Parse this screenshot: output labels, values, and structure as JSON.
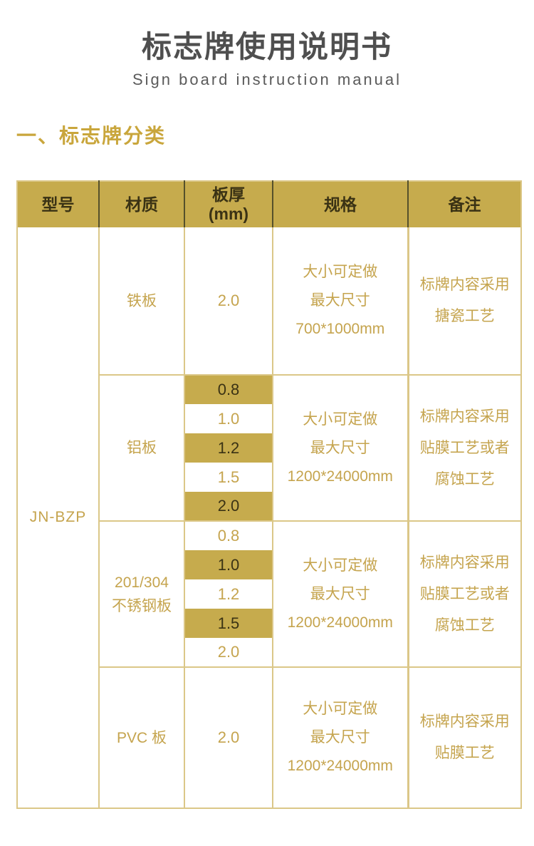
{
  "page": {
    "title": "标志牌使用说明书",
    "subtitle": "Sign board instruction manual",
    "section_heading": "一、标志牌分类"
  },
  "colors": {
    "gold_bg": "#C6AB4D",
    "gold_text": "#C5A44E",
    "dark_on_gold": "#3A3214",
    "table_border": "#DBC788",
    "header_divider": "#55502B",
    "title_color": "#4F4F4F",
    "subtitle_color": "#5A5A5A",
    "section_color": "#C9A63C"
  },
  "table": {
    "model_label": "JN-BZP",
    "headers": {
      "model": "型号",
      "material": "材质",
      "thickness_line1": "板厚",
      "thickness_line2": "(mm)",
      "spec": "规格",
      "remark": "备注"
    },
    "sections": [
      {
        "material_lines": [
          "铁板"
        ],
        "thicknesses": [
          {
            "value": "2.0",
            "highlighted": false
          }
        ],
        "spec_lines": [
          "大小可定做",
          "最大尺寸",
          "700*1000mm"
        ],
        "remark_lines": [
          "标牌内容采用",
          "搪瓷工艺"
        ]
      },
      {
        "material_lines": [
          "铝板"
        ],
        "thicknesses": [
          {
            "value": "0.8",
            "highlighted": true
          },
          {
            "value": "1.0",
            "highlighted": false
          },
          {
            "value": "1.2",
            "highlighted": true
          },
          {
            "value": "1.5",
            "highlighted": false
          },
          {
            "value": "2.0",
            "highlighted": true
          }
        ],
        "spec_lines": [
          "大小可定做",
          "最大尺寸",
          "1200*24000mm"
        ],
        "remark_lines": [
          "标牌内容采用",
          "贴膜工艺或者",
          "腐蚀工艺"
        ]
      },
      {
        "material_lines": [
          "201/304",
          "不锈钢板"
        ],
        "thicknesses": [
          {
            "value": "0.8",
            "highlighted": false
          },
          {
            "value": "1.0",
            "highlighted": true
          },
          {
            "value": "1.2",
            "highlighted": false
          },
          {
            "value": "1.5",
            "highlighted": true
          },
          {
            "value": "2.0",
            "highlighted": false
          }
        ],
        "spec_lines": [
          "大小可定做",
          "最大尺寸",
          "1200*24000mm"
        ],
        "remark_lines": [
          "标牌内容采用",
          "贴膜工艺或者",
          "腐蚀工艺"
        ]
      },
      {
        "material_lines": [
          "PVC 板"
        ],
        "thicknesses": [
          {
            "value": "2.0",
            "highlighted": false
          }
        ],
        "spec_lines": [
          "大小可定做",
          "最大尺寸",
          "1200*24000mm"
        ],
        "remark_lines": [
          "标牌内容采用",
          "贴膜工艺"
        ]
      }
    ]
  }
}
